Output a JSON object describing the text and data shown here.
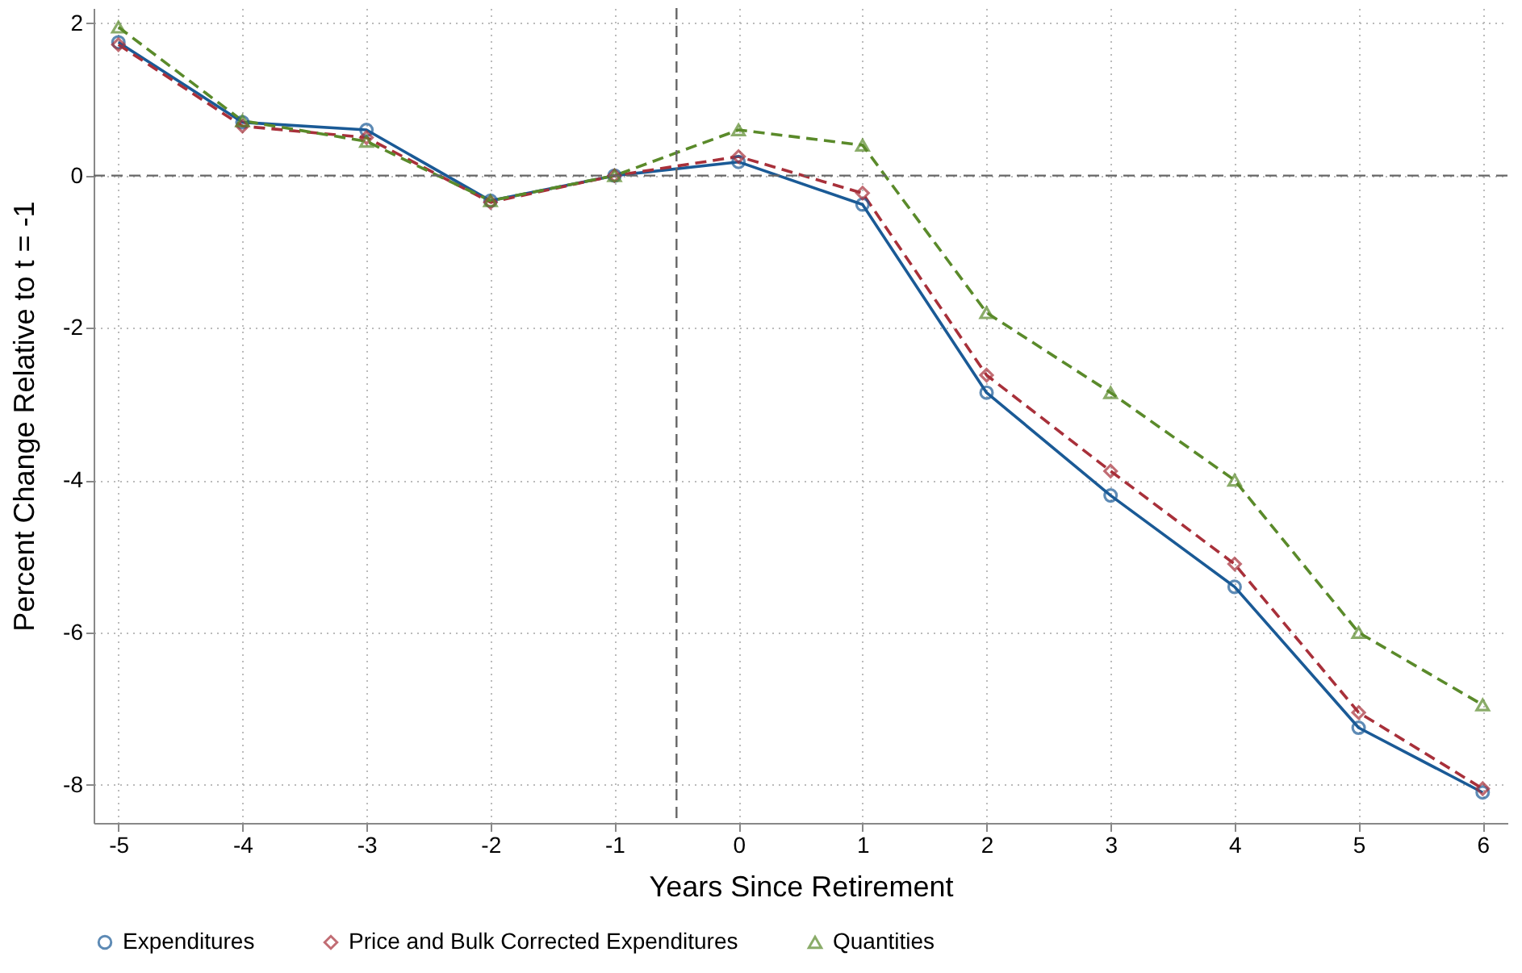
{
  "chart_data": {
    "type": "line",
    "xlabel": "Years Since Retirement",
    "ylabel": "Percent Change Relative to t = -1",
    "x": [
      -5,
      -4,
      -3,
      -2,
      -1,
      0,
      1,
      2,
      3,
      4,
      5,
      6
    ],
    "series": [
      {
        "name": "Expenditures",
        "color": "#1a5a96",
        "marker": "circle",
        "line_style": "solid",
        "values": [
          1.75,
          0.7,
          0.6,
          -0.33,
          0,
          0.18,
          -0.38,
          -2.85,
          -4.2,
          -5.4,
          -7.25,
          -8.1
        ]
      },
      {
        "name": "Price and Bulk Corrected Expenditures",
        "color": "#a8303a",
        "marker": "diamond",
        "line_style": "dashed",
        "values": [
          1.72,
          0.65,
          0.5,
          -0.35,
          0,
          0.25,
          -0.23,
          -2.62,
          -3.88,
          -5.1,
          -7.05,
          -8.05
        ]
      },
      {
        "name": "Quantities",
        "color": "#5a8a2a",
        "marker": "triangle",
        "line_style": "dashed",
        "values": [
          1.95,
          0.72,
          0.45,
          -0.33,
          0,
          0.6,
          0.4,
          -1.8,
          -2.85,
          -4.0,
          -6.0,
          -6.95
        ]
      }
    ],
    "xlim": [
      -5.2,
      6.2
    ],
    "xticks": [
      -5,
      -4,
      -3,
      -2,
      -1,
      0,
      1,
      2,
      3,
      4,
      5,
      6
    ],
    "ylim": [
      -8.5,
      2.2
    ],
    "yticks": [
      -8,
      -6,
      -4,
      -2,
      0,
      2
    ],
    "ref_lines": [
      {
        "axis": "y",
        "value": 0,
        "color": "#666666",
        "line_style": "dashed"
      },
      {
        "axis": "x",
        "value": -0.5,
        "color": "#666666",
        "line_style": "dashed"
      }
    ],
    "grid": true,
    "legend": "bottom"
  }
}
